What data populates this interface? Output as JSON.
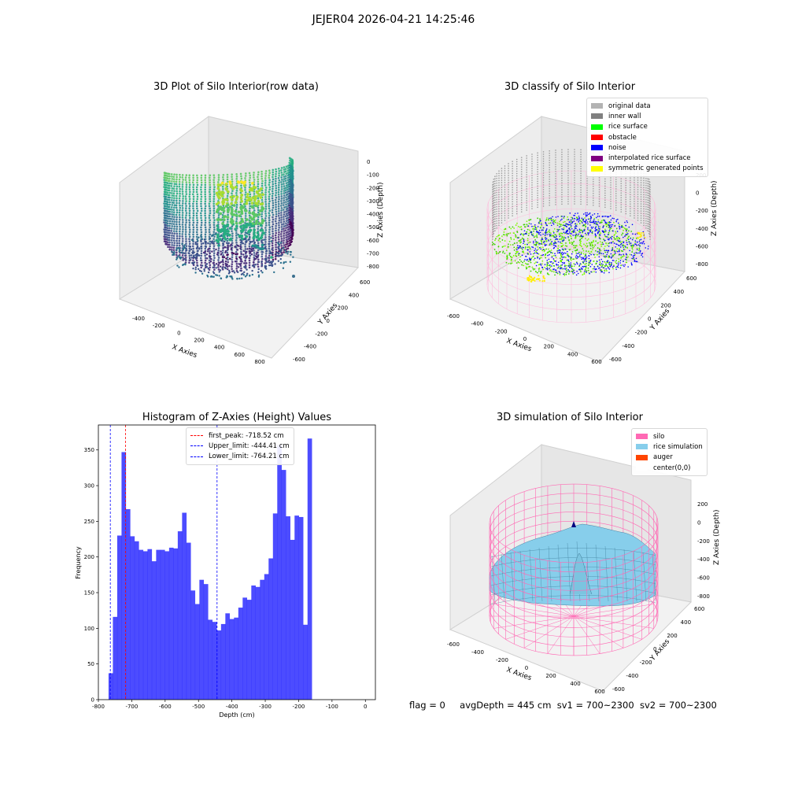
{
  "figure": {
    "title": "JEJER04 2026-04-21 14:25:46"
  },
  "panels": {
    "raw": {
      "title": "3D Plot of Silo Interior(row data)",
      "xlabel": "X Axies",
      "ylabel": "Y Axies",
      "zlabel": "Z Axies (Depth)",
      "xticks": [
        "-400",
        "-200",
        "0",
        "200",
        "400",
        "600",
        "800"
      ],
      "yticks": [
        "-600",
        "-400",
        "-200",
        "0",
        "200",
        "400",
        "600"
      ],
      "zticks": [
        "0",
        "-100",
        "-200",
        "-300",
        "-400",
        "-500",
        "-600",
        "-700",
        "-800"
      ],
      "colormap": "viridis"
    },
    "classify": {
      "title": "3D classify of Silo Interior",
      "xlabel": "X Axies",
      "ylabel": "Y Axies",
      "zlabel": "Z Axies (Depth)",
      "xticks": [
        "-600",
        "-400",
        "-200",
        "0",
        "200",
        "400",
        "600"
      ],
      "yticks": [
        "-600",
        "-400",
        "-200",
        "0",
        "200",
        "400",
        "600"
      ],
      "zticks": [
        "200",
        "0",
        "-200",
        "-400",
        "-600",
        "-800"
      ],
      "legend": [
        {
          "label": "original data",
          "color": "#b3b3b3"
        },
        {
          "label": "inner wall",
          "color": "#808080"
        },
        {
          "label": "rice surface",
          "color": "#00ff00"
        },
        {
          "label": "obstacle",
          "color": "#ff0000"
        },
        {
          "label": "noise",
          "color": "#0000ff"
        },
        {
          "label": "interpolated rice surface",
          "color": "#800080"
        },
        {
          "label": "symmetric generated points",
          "color": "#ffff00"
        }
      ]
    },
    "simulation": {
      "title": "3D simulation of Silo Interior",
      "xlabel": "X Axies",
      "ylabel": "Y Axies",
      "zlabel": "Z Axies (Depth)",
      "xticks": [
        "-600",
        "-400",
        "-200",
        "0",
        "200",
        "400",
        "600"
      ],
      "yticks": [
        "-600",
        "-400",
        "-200",
        "0",
        "200",
        "400",
        "600"
      ],
      "zticks": [
        "200",
        "0",
        "-200",
        "-400",
        "-600",
        "-800"
      ],
      "legend": [
        {
          "label": "silo",
          "color": "#ff69b4"
        },
        {
          "label": "rice simulation",
          "color": "#87ceeb"
        },
        {
          "label": "auger",
          "color": "#ff4500"
        },
        {
          "label": "center(0,0)",
          "color": "#ffffff"
        }
      ]
    }
  },
  "chart_data": {
    "type": "bar",
    "title": "Histogram of Z-Axies (Height) Values",
    "xlabel": "Depth (cm)",
    "ylabel": "Frequency",
    "xlim": [
      -800,
      30
    ],
    "ylim": [
      0,
      385
    ],
    "xticks": [
      -800,
      -700,
      -600,
      -500,
      -400,
      -300,
      -200,
      -100,
      0
    ],
    "yticks": [
      0,
      50,
      100,
      150,
      200,
      250,
      300,
      350
    ],
    "bar_color": "#0000ff",
    "bin_start": -769.5,
    "bin_width": 12.96,
    "values": [
      37,
      116,
      230,
      347,
      267,
      229,
      222,
      210,
      208,
      211,
      194,
      210,
      210,
      208,
      213,
      212,
      236,
      262,
      220,
      153,
      134,
      168,
      162,
      112,
      109,
      97,
      106,
      121,
      113,
      115,
      129,
      143,
      140,
      160,
      158,
      168,
      176,
      198,
      261,
      357,
      322,
      257,
      224,
      258,
      256,
      105,
      366
    ],
    "reference_lines": [
      {
        "label": "first_peak: -718.52 cm",
        "x": -718.52,
        "color": "#ff0000"
      },
      {
        "label": "Upper_limit: -444.41 cm",
        "x": -444.41,
        "color": "#0000ff"
      },
      {
        "label": "Lower_limit: -764.21 cm",
        "x": -764.21,
        "color": "#0000ff"
      }
    ]
  },
  "footer": {
    "flag": "flag = 0",
    "avg_depth": "avgDepth = 445 cm",
    "sv1": "sv1 = 700~2300",
    "sv2": "sv2 = 700~2300"
  }
}
